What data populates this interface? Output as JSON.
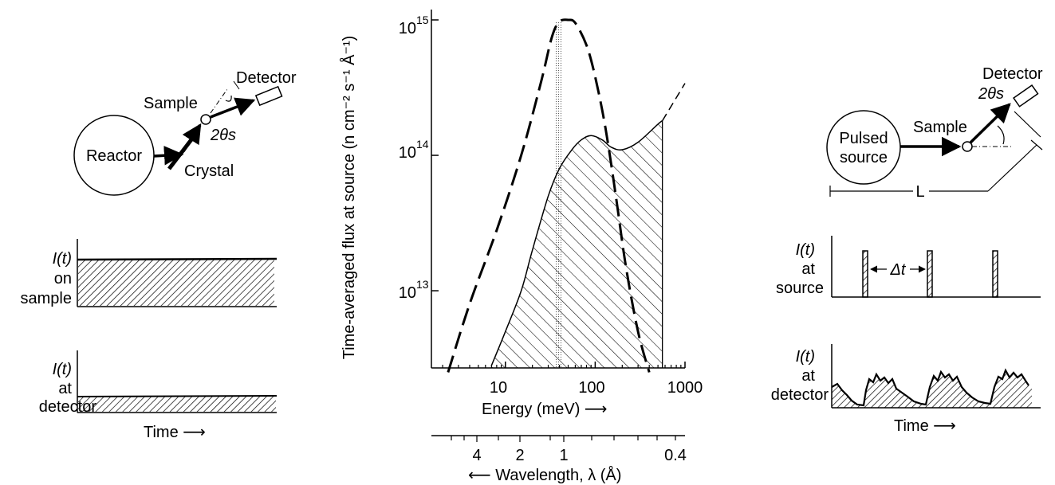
{
  "left_panel": {
    "reactor_label": "Reactor",
    "crystal_label": "Crystal",
    "sample_label": "Sample",
    "detector_label": "Detector",
    "angle_label": "2θs",
    "plot1_ylabel": [
      "I(t)",
      "on",
      "sample"
    ],
    "plot2_ylabel": [
      "I(t)",
      "at",
      "detector"
    ],
    "time_label": "Time ⟶"
  },
  "center_chart": {
    "chart_data": {
      "type": "line",
      "xscale": "log",
      "yscale": "log",
      "xlabel": "Energy (meV) ⟶",
      "ylabel": "Time-averaged flux at source (n cm⁻² s⁻¹ Å⁻¹)",
      "secondary_xlabel": "⟵ Wavelength, λ (Å)",
      "xticks": [
        "10",
        "100",
        "1000"
      ],
      "secondary_xticks": [
        "4",
        "2",
        "1",
        "0.4"
      ],
      "ytick_base": "10",
      "ytick_exponents": [
        "13",
        "14",
        "15"
      ],
      "series": [
        {
          "style": "dashed",
          "x": [
            2.3,
            4,
            8,
            15,
            25,
            33,
            40,
            50,
            60,
            80,
            100,
            130,
            170,
            220,
            300,
            400
          ],
          "y": [
            2500000000000.0,
            8000000000000.0,
            28000000000000.0,
            100000000000000.0,
            350000000000000.0,
            750000000000000.0,
            970000000000000.0,
            1000000000000000.0,
            950000000000000.0,
            650000000000000.0,
            380000000000000.0,
            160000000000000.0,
            50000000000000.0,
            15000000000000.0,
            5000000000000.0,
            2500000000000.0
          ]
        },
        {
          "style": "solid-hatched",
          "x": [
            7,
            10,
            15,
            20,
            30,
            40,
            55,
            70,
            90,
            120,
            150,
            200,
            300,
            500,
            560
          ],
          "y": [
            2800000000000.0,
            5000000000000.0,
            10000000000000.0,
            20000000000000.0,
            50000000000000.0,
            80000000000000.0,
            110000000000000.0,
            130000000000000.0,
            140000000000000.0,
            130000000000000.0,
            115000000000000.0,
            110000000000000.0,
            125000000000000.0,
            170000000000000.0,
            180000000000000.0
          ]
        }
      ]
    }
  },
  "right_panel": {
    "pulsed_source_label": [
      "Pulsed",
      "source"
    ],
    "sample_label": "Sample",
    "detector_label": "Detector",
    "angle_label": "2θs",
    "distance_label": "L",
    "plot1_ylabel": [
      "I(t)",
      "at",
      "source"
    ],
    "delta_t_label": "Δt",
    "plot2_ylabel": [
      "I(t)",
      "at",
      "detector"
    ],
    "time_label": "Time ⟶"
  }
}
